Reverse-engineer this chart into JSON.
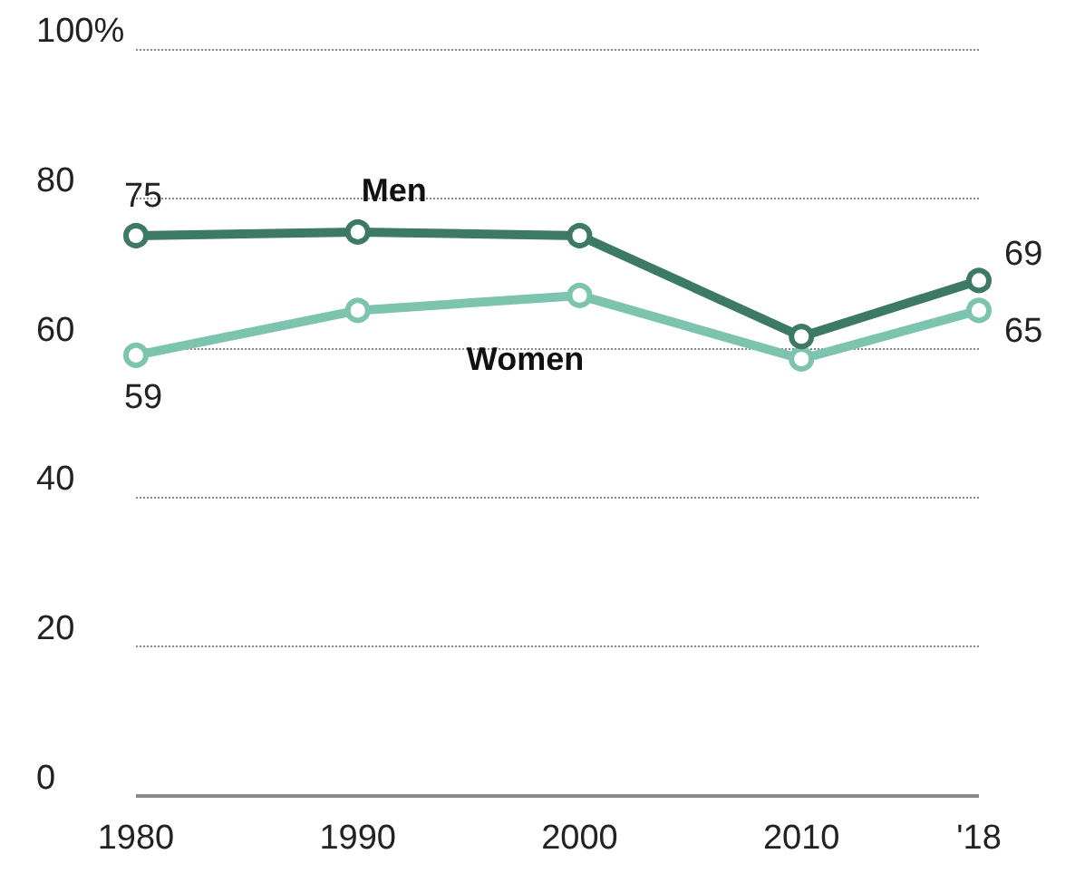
{
  "chart_data": {
    "type": "line",
    "x": [
      1980,
      1990,
      2000,
      2010,
      2018
    ],
    "series": [
      {
        "name": "Men",
        "color": "#3d7a64",
        "values": [
          75,
          75.5,
          75,
          61.5,
          69
        ],
        "value_labels": [
          "75",
          null,
          null,
          null,
          "69"
        ]
      },
      {
        "name": "Women",
        "color": "#7cc4ae",
        "values": [
          59,
          65,
          67,
          58.5,
          65
        ],
        "value_labels": [
          "59",
          null,
          null,
          null,
          "65"
        ]
      }
    ],
    "xlim": [
      1980,
      2018
    ],
    "xticks": [
      1980,
      1990,
      2000,
      2010,
      {
        "value": 2018,
        "label": "'18"
      }
    ],
    "ylim": [
      0,
      100
    ],
    "yticks": [
      0,
      20,
      40,
      60,
      80,
      {
        "value": 100,
        "label": "100%"
      }
    ],
    "grid": "y",
    "legend": false,
    "marker": "circle",
    "line_style": "solid"
  }
}
